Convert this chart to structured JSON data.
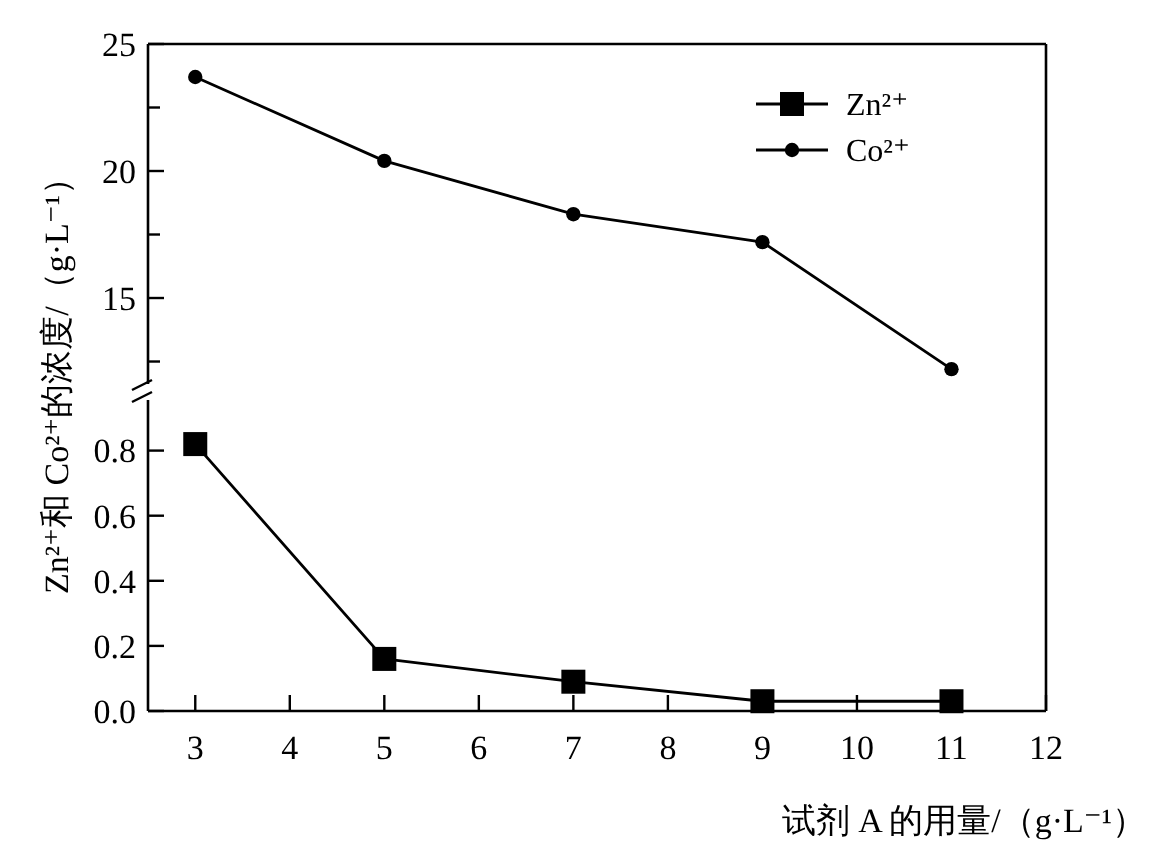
{
  "chart_data": [
    {
      "type": "line",
      "ylabel": "Zn²⁺和 Co²⁺的浓度/（g·L⁻¹）",
      "xlim": [
        2.5,
        12
      ],
      "ylim": [
        11.3,
        25
      ],
      "yticks": [
        25,
        {
          "value": 22.5,
          "label": null
        },
        20,
        {
          "value": 17.5,
          "label": null
        },
        15,
        {
          "value": 12.5,
          "label": null
        }
      ],
      "tick_labels": "y",
      "legend": "top right",
      "series": [
        {
          "name": "Co²⁺",
          "color": "#000000",
          "marker": "circle",
          "x": [
            3,
            5,
            7,
            9,
            11
          ],
          "values": [
            23.7,
            20.4,
            18.3,
            17.2,
            12.2
          ]
        }
      ]
    },
    {
      "type": "line",
      "xlabel": "试剂 A 的用量/（g·L⁻¹）",
      "xlim": [
        2.5,
        12
      ],
      "xticks": [
        3,
        4,
        5,
        6,
        7,
        8,
        9,
        10,
        11,
        12
      ],
      "ylim": [
        0,
        0.98
      ],
      "legend": "top right",
      "yticks": [
        {
          "value": 0,
          "label": "0.0"
        },
        0.2,
        0.4,
        0.6,
        0.8
      ],
      "series": [
        {
          "name": "Zn²⁺",
          "color": "#000000",
          "marker": "square",
          "x": [
            3,
            5,
            7,
            9,
            11
          ],
          "values": [
            0.82,
            0.16,
            0.09,
            0.03,
            0.03
          ]
        }
      ]
    }
  ]
}
